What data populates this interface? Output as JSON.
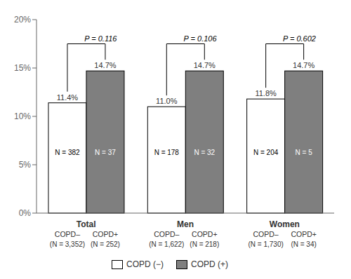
{
  "chart_data": {
    "type": "bar",
    "categories": [
      "Total",
      "Men",
      "Women"
    ],
    "series": [
      {
        "name": "COPD (−)",
        "color": "#ffffff",
        "values": [
          11.4,
          11.0,
          11.8
        ],
        "value_labels": [
          "11.4%",
          "11.0%",
          "11.8%"
        ],
        "n_labels": [
          "N = 382",
          "N = 178",
          "N = 204"
        ],
        "below_labels": [
          "COPD–",
          "COPD–",
          "COPD–"
        ],
        "below_totals": [
          "(N = 3,352)",
          "(N = 1,622)",
          "(N = 1,730)"
        ]
      },
      {
        "name": "COPD (+)",
        "color": "#7f7f7f",
        "values": [
          14.7,
          14.7,
          14.7
        ],
        "value_labels": [
          "14.7%",
          "14.7%",
          "14.7%"
        ],
        "n_labels": [
          "N = 37",
          "N = 32",
          "N = 5"
        ],
        "below_labels": [
          "COPD+",
          "COPD+",
          "COPD+"
        ],
        "below_totals": [
          "(N = 252)",
          "(N = 218)",
          "(N = 34)"
        ]
      }
    ],
    "annotations": [
      "P = 0.116",
      "P = 0.106",
      "P = 0.602"
    ],
    "edge_color": "#000000",
    "ylim": [
      0,
      20
    ],
    "yticks": [
      {
        "value": 0,
        "label": "0%"
      },
      {
        "value": 5,
        "label": "5%"
      },
      {
        "value": 10,
        "label": "10%"
      },
      {
        "value": 15,
        "label": "15%"
      },
      {
        "value": 20,
        "label": "20%"
      }
    ],
    "data_labels": true,
    "legend": "bottom",
    "grid": false
  }
}
